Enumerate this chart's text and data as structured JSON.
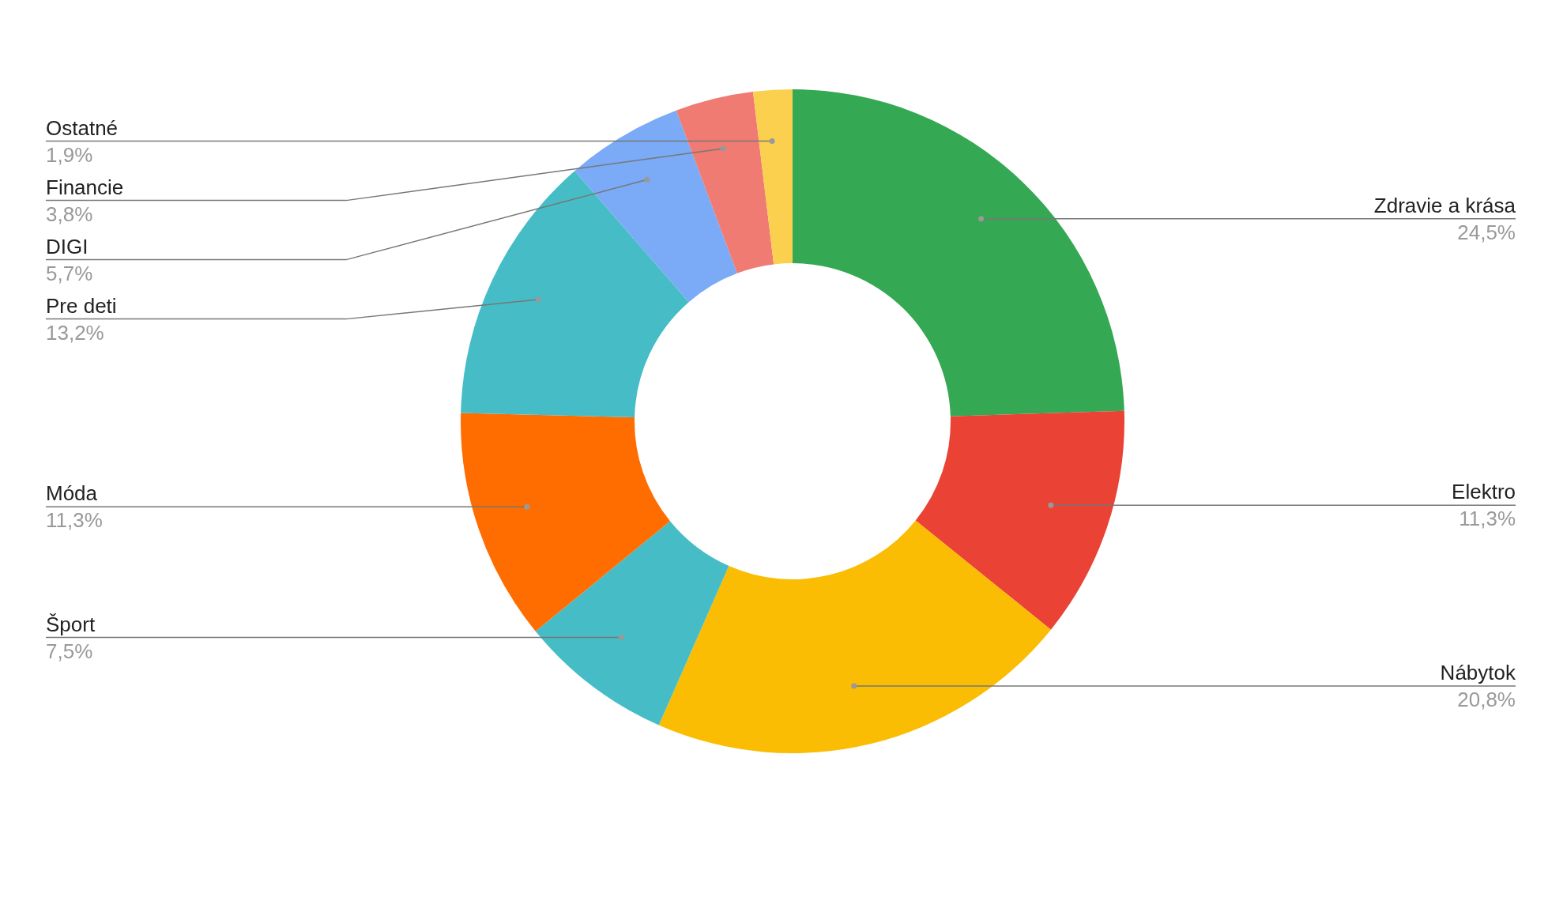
{
  "chart_data": {
    "type": "donut",
    "categories": [
      "Zdravie a krása",
      "Elektro",
      "Nábytok",
      "Šport",
      "Móda",
      "Pre deti",
      "DIGI",
      "Financie",
      "Ostatné"
    ],
    "values": [
      24.5,
      11.3,
      20.8,
      7.5,
      11.3,
      13.2,
      5.7,
      3.8,
      1.9
    ],
    "colors": [
      "#34a853",
      "#ea4335",
      "#fbbc04",
      "#46bdc6",
      "#ff6d01",
      "#46bdc6",
      "#7baaf7",
      "#f07b72",
      "#fcd04f"
    ],
    "value_labels": [
      "24,5%",
      "11,3%",
      "20,8%",
      "7,5%",
      "11,3%",
      "13,2%",
      "5,7%",
      "3,8%",
      "1,9%"
    ],
    "legend": false
  }
}
